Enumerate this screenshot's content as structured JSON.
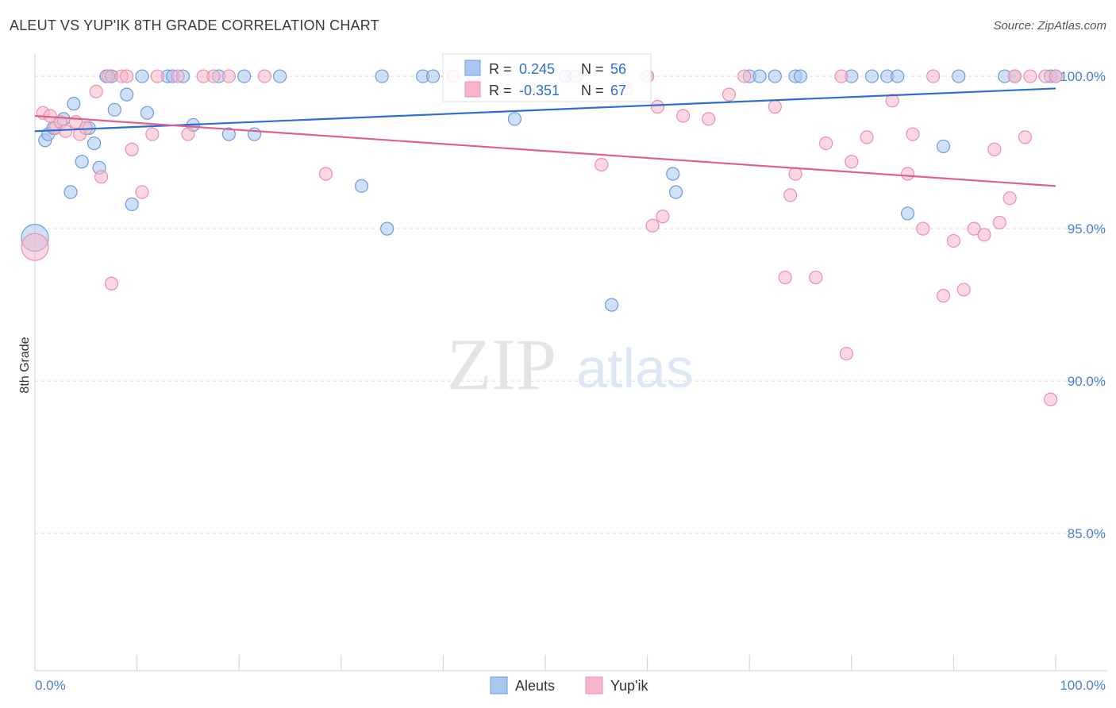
{
  "header": {
    "title": "ALEUT VS YUP'IK 8TH GRADE CORRELATION CHART",
    "source": "Source: ZipAtlas.com"
  },
  "watermark": {
    "zip": "ZIP",
    "atlas": "atlas"
  },
  "chart_data": {
    "type": "scatter",
    "ylabel": "8th Grade",
    "xlim": [
      0,
      100
    ],
    "ylim": [
      80.5,
      101.2
    ],
    "x_tick_labels": [
      "0.0%",
      "100.0%"
    ],
    "y_ticks": [
      {
        "value": 100,
        "label": "100.0%"
      },
      {
        "value": 95,
        "label": "95.0%"
      },
      {
        "value": 90,
        "label": "90.0%"
      },
      {
        "value": 85,
        "label": "85.0%"
      }
    ],
    "grid": true,
    "legend_position": "top-center",
    "colors": {
      "aleuts_fill": "#a9c8f0",
      "aleuts_stroke": "#6a9be0",
      "aleuts_line": "#2b6fd0",
      "yupik_fill": "#f7b6c8",
      "yupik_stroke": "#ec8fab",
      "yupik_line": "#e0608a",
      "text_blue": "#2b6fd0"
    },
    "stats": [
      {
        "r_label": "R = ",
        "r_value": "0.245",
        "n_label": "N = ",
        "n_value": "56"
      },
      {
        "r_label": "R = ",
        "r_value": "-0.351",
        "n_label": "N = ",
        "n_value": "67"
      }
    ],
    "series": [
      {
        "name": "Aleuts",
        "trend": {
          "x": [
            0,
            100
          ],
          "y": [
            98.2,
            99.6
          ]
        },
        "points": [
          {
            "x": 0,
            "y": 94.7,
            "big": true
          },
          {
            "x": 1.0,
            "y": 97.9
          },
          {
            "x": 1.3,
            "y": 98.1
          },
          {
            "x": 1.8,
            "y": 98.3
          },
          {
            "x": 2.8,
            "y": 98.6
          },
          {
            "x": 3.5,
            "y": 96.2
          },
          {
            "x": 3.8,
            "y": 99.1
          },
          {
            "x": 4.6,
            "y": 97.2
          },
          {
            "x": 5.3,
            "y": 98.3
          },
          {
            "x": 5.8,
            "y": 97.8
          },
          {
            "x": 6.3,
            "y": 97.0
          },
          {
            "x": 7.0,
            "y": 100
          },
          {
            "x": 7.5,
            "y": 100
          },
          {
            "x": 7.8,
            "y": 98.9
          },
          {
            "x": 9.0,
            "y": 99.4
          },
          {
            "x": 9.5,
            "y": 95.8
          },
          {
            "x": 10.5,
            "y": 100
          },
          {
            "x": 11.0,
            "y": 98.8
          },
          {
            "x": 13.0,
            "y": 100
          },
          {
            "x": 13.5,
            "y": 100
          },
          {
            "x": 14.5,
            "y": 100
          },
          {
            "x": 15.5,
            "y": 98.4
          },
          {
            "x": 18.0,
            "y": 100
          },
          {
            "x": 19.0,
            "y": 98.1
          },
          {
            "x": 20.5,
            "y": 100
          },
          {
            "x": 21.5,
            "y": 98.1
          },
          {
            "x": 24.0,
            "y": 100
          },
          {
            "x": 32.0,
            "y": 96.4
          },
          {
            "x": 34.0,
            "y": 100
          },
          {
            "x": 34.5,
            "y": 95.0
          },
          {
            "x": 38.0,
            "y": 100
          },
          {
            "x": 39.0,
            "y": 100
          },
          {
            "x": 43.0,
            "y": 100
          },
          {
            "x": 47.0,
            "y": 98.6
          },
          {
            "x": 52.0,
            "y": 100
          },
          {
            "x": 53.0,
            "y": 100
          },
          {
            "x": 56.5,
            "y": 92.5
          },
          {
            "x": 60.0,
            "y": 100
          },
          {
            "x": 62.5,
            "y": 96.8
          },
          {
            "x": 62.8,
            "y": 96.2
          },
          {
            "x": 70.0,
            "y": 100
          },
          {
            "x": 71.0,
            "y": 100
          },
          {
            "x": 72.5,
            "y": 100
          },
          {
            "x": 74.5,
            "y": 100
          },
          {
            "x": 75.0,
            "y": 100
          },
          {
            "x": 80.0,
            "y": 100
          },
          {
            "x": 82.0,
            "y": 100
          },
          {
            "x": 83.5,
            "y": 100
          },
          {
            "x": 84.5,
            "y": 100
          },
          {
            "x": 85.5,
            "y": 95.5
          },
          {
            "x": 89.0,
            "y": 97.7
          },
          {
            "x": 90.5,
            "y": 100
          },
          {
            "x": 95.0,
            "y": 100
          },
          {
            "x": 96.0,
            "y": 100
          },
          {
            "x": 99.5,
            "y": 100
          },
          {
            "x": 100,
            "y": 100
          }
        ]
      },
      {
        "name": "Yup'ik",
        "trend": {
          "x": [
            0,
            100
          ],
          "y": [
            98.7,
            96.4
          ]
        },
        "points": [
          {
            "x": 0,
            "y": 94.4,
            "big": true
          },
          {
            "x": 0.8,
            "y": 98.8
          },
          {
            "x": 1.5,
            "y": 98.7
          },
          {
            "x": 2.0,
            "y": 98.3
          },
          {
            "x": 2.5,
            "y": 98.5
          },
          {
            "x": 3.0,
            "y": 98.2
          },
          {
            "x": 4.0,
            "y": 98.5
          },
          {
            "x": 4.4,
            "y": 98.1
          },
          {
            "x": 5.0,
            "y": 98.3
          },
          {
            "x": 6.0,
            "y": 99.5
          },
          {
            "x": 6.5,
            "y": 96.7
          },
          {
            "x": 7.2,
            "y": 100
          },
          {
            "x": 7.5,
            "y": 93.2
          },
          {
            "x": 8.5,
            "y": 100
          },
          {
            "x": 9.0,
            "y": 100
          },
          {
            "x": 9.5,
            "y": 97.6
          },
          {
            "x": 10.5,
            "y": 96.2
          },
          {
            "x": 11.5,
            "y": 98.1
          },
          {
            "x": 12.0,
            "y": 100
          },
          {
            "x": 14.0,
            "y": 100
          },
          {
            "x": 15.0,
            "y": 98.1
          },
          {
            "x": 16.5,
            "y": 100
          },
          {
            "x": 17.5,
            "y": 100
          },
          {
            "x": 19.0,
            "y": 100
          },
          {
            "x": 22.5,
            "y": 100
          },
          {
            "x": 28.5,
            "y": 96.8
          },
          {
            "x": 41.0,
            "y": 100
          },
          {
            "x": 43.0,
            "y": 100
          },
          {
            "x": 55.5,
            "y": 97.1
          },
          {
            "x": 58.0,
            "y": 99.6
          },
          {
            "x": 60.0,
            "y": 100
          },
          {
            "x": 60.5,
            "y": 95.1
          },
          {
            "x": 61.0,
            "y": 99.0
          },
          {
            "x": 61.5,
            "y": 95.4
          },
          {
            "x": 63.5,
            "y": 98.7
          },
          {
            "x": 66.0,
            "y": 98.6
          },
          {
            "x": 68.0,
            "y": 99.4
          },
          {
            "x": 69.5,
            "y": 100
          },
          {
            "x": 72.5,
            "y": 99.0
          },
          {
            "x": 73.5,
            "y": 93.4
          },
          {
            "x": 74.0,
            "y": 96.1
          },
          {
            "x": 74.5,
            "y": 96.8
          },
          {
            "x": 76.5,
            "y": 93.4
          },
          {
            "x": 77.5,
            "y": 97.8
          },
          {
            "x": 79.0,
            "y": 100
          },
          {
            "x": 79.5,
            "y": 90.9
          },
          {
            "x": 80.0,
            "y": 97.2
          },
          {
            "x": 81.5,
            "y": 98.0
          },
          {
            "x": 84.0,
            "y": 99.2
          },
          {
            "x": 85.5,
            "y": 96.8
          },
          {
            "x": 86.0,
            "y": 98.1
          },
          {
            "x": 87.0,
            "y": 95.0
          },
          {
            "x": 88.0,
            "y": 100
          },
          {
            "x": 89.0,
            "y": 92.8
          },
          {
            "x": 90.0,
            "y": 94.6
          },
          {
            "x": 91.0,
            "y": 93.0
          },
          {
            "x": 92.0,
            "y": 95.0
          },
          {
            "x": 93.0,
            "y": 94.8
          },
          {
            "x": 94.0,
            "y": 97.6
          },
          {
            "x": 94.5,
            "y": 95.2
          },
          {
            "x": 95.5,
            "y": 96.0
          },
          {
            "x": 96.0,
            "y": 100
          },
          {
            "x": 97.0,
            "y": 98.0
          },
          {
            "x": 97.5,
            "y": 100
          },
          {
            "x": 99.0,
            "y": 100
          },
          {
            "x": 99.5,
            "y": 89.4
          },
          {
            "x": 100,
            "y": 100
          }
        ]
      }
    ]
  }
}
